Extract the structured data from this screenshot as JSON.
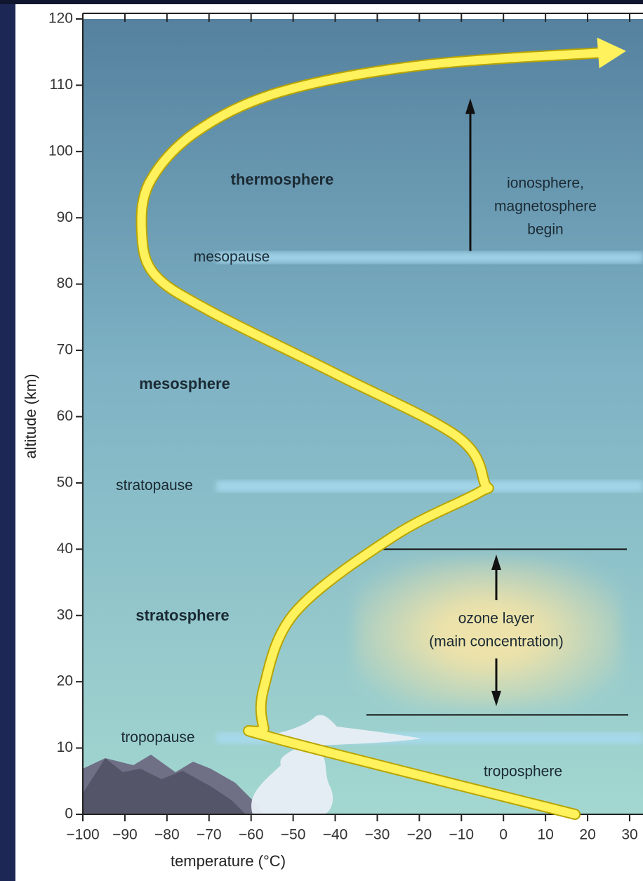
{
  "chart_data": {
    "type": "line",
    "x": [
      17,
      -54.5,
      -57,
      -57,
      -49.5,
      -26,
      -6,
      -4.5,
      -11,
      -40,
      -70,
      -83,
      -86,
      -84,
      -73,
      -53,
      -19.5,
      25.5
    ],
    "values": [
      0,
      11.5,
      13,
      19,
      30.5,
      42,
      48.5,
      50,
      57,
      66.5,
      76,
      81.5,
      88,
      95.5,
      103,
      109,
      113,
      115
    ],
    "color": "#fff25c",
    "xlabel": "temperature (°C)",
    "ylabel": "altitude (km)",
    "xlim": [
      -100,
      30
    ],
    "ylim": [
      0,
      120
    ],
    "xticks": [
      {
        "value": -100,
        "label": "−100"
      },
      {
        "value": -90,
        "label": "−90"
      },
      {
        "value": -80,
        "label": "−80"
      },
      {
        "value": -70,
        "label": "−70"
      },
      {
        "value": -60,
        "label": "−60"
      },
      {
        "value": -50,
        "label": "−50"
      },
      {
        "value": -40,
        "label": "−40"
      },
      {
        "value": -30,
        "label": "−30"
      },
      {
        "value": -20,
        "label": "−20"
      },
      {
        "value": -10,
        "label": "−10"
      },
      0,
      10,
      20,
      30
    ],
    "yticks": [
      0,
      10,
      20,
      30,
      40,
      50,
      60,
      70,
      80,
      90,
      100,
      110,
      120
    ],
    "boundaries": [
      {
        "name": "mesopause",
        "value": 84
      },
      {
        "name": "stratopause",
        "value": 49.5
      },
      {
        "name": "tropopause",
        "value": 11.5
      }
    ],
    "regions": [
      "thermosphere",
      "mesosphere",
      "stratosphere",
      "troposphere"
    ],
    "ozone_layer": {
      "lines": [
        "ozone layer",
        "(main concentration)"
      ],
      "range": [
        15,
        40
      ]
    },
    "ionosphere": {
      "lines": [
        "ionosphere,",
        "magnetosphere",
        "begin"
      ],
      "range": [
        85,
        108
      ]
    }
  }
}
